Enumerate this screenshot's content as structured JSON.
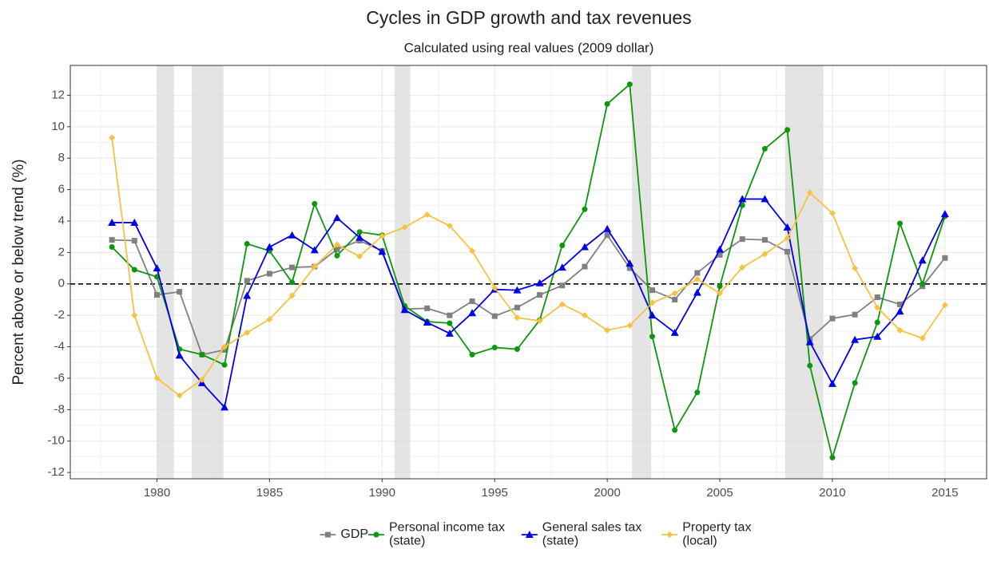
{
  "chart_data": {
    "type": "line",
    "title": "Cycles in GDP growth and tax revenues",
    "subtitle": "Calculated using real values (2009 dollar)",
    "y_label": "Percent above or below trend (%)",
    "x": [
      1978,
      1979,
      1980,
      1981,
      1982,
      1983,
      1984,
      1985,
      1986,
      1987,
      1988,
      1989,
      1990,
      1991,
      1992,
      1993,
      1994,
      1995,
      1996,
      1997,
      1998,
      1999,
      2000,
      2001,
      2002,
      2003,
      2004,
      2005,
      2006,
      2007,
      2008,
      2009,
      2010,
      2011,
      2012,
      2013,
      2014,
      2015
    ],
    "series": [
      {
        "name": "GDP",
        "color": "#808080",
        "marker": "square",
        "values": [
          2.8,
          2.75,
          -0.7,
          -0.5,
          -4.5,
          -4.2,
          0.2,
          0.65,
          1.05,
          1.1,
          2.2,
          2.75,
          2.1,
          -1.6,
          -1.55,
          -2.0,
          -1.1,
          -2.05,
          -1.5,
          -0.7,
          -0.1,
          1.1,
          3.1,
          1.0,
          -0.4,
          -1.0,
          0.7,
          1.85,
          2.85,
          2.8,
          2.05,
          -3.5,
          -2.2,
          -1.95,
          -0.85,
          -1.3,
          -0.15,
          1.65
        ]
      },
      {
        "name": "Personal income tax\n(state)",
        "color": "#0f960f",
        "marker": "circle",
        "values": [
          2.35,
          0.9,
          0.45,
          -4.15,
          -4.5,
          -5.15,
          2.55,
          2.1,
          0.1,
          5.1,
          1.8,
          3.3,
          3.1,
          -1.4,
          -2.4,
          -2.5,
          -4.5,
          -4.05,
          -4.15,
          -2.3,
          2.45,
          4.75,
          11.45,
          12.7,
          -3.35,
          -9.3,
          -6.9,
          -0.15,
          5.0,
          8.6,
          9.8,
          -5.2,
          -11.05,
          -6.3,
          -2.45,
          3.85,
          0.0,
          4.3
        ]
      },
      {
        "name": "General sales tax\n(state)",
        "color": "#0000e6",
        "marker": "triangle",
        "values": [
          3.9,
          3.9,
          1.0,
          -4.55,
          -6.3,
          -7.85,
          -0.75,
          2.35,
          3.1,
          2.15,
          4.2,
          2.95,
          2.05,
          -1.65,
          -2.45,
          -3.15,
          -1.85,
          -0.35,
          -0.4,
          0.05,
          1.05,
          2.35,
          3.5,
          1.3,
          -2.0,
          -3.1,
          -0.55,
          2.2,
          5.4,
          5.4,
          3.6,
          -3.7,
          -6.35,
          -3.55,
          -3.35,
          -1.75,
          1.5,
          4.45
        ]
      },
      {
        "name": "Property tax\n(local)",
        "color": "#f5c242",
        "marker": "diamond",
        "values": [
          9.3,
          -2.0,
          -6.0,
          -7.1,
          -6.1,
          -4.0,
          -3.1,
          -2.25,
          -0.75,
          1.1,
          2.5,
          1.75,
          3.05,
          3.6,
          4.4,
          3.7,
          2.1,
          -0.25,
          -2.15,
          -2.35,
          -1.3,
          -2.0,
          -2.95,
          -2.65,
          -1.2,
          -0.6,
          0.3,
          -0.6,
          1.05,
          1.9,
          2.9,
          5.8,
          4.5,
          1.0,
          -1.5,
          -2.95,
          -3.45,
          -1.35
        ]
      }
    ],
    "recessions": [
      [
        1980.0,
        1980.75
      ],
      [
        1981.55,
        1982.95
      ],
      [
        1990.55,
        1991.25
      ],
      [
        2001.1,
        2001.95
      ],
      [
        2007.9,
        2009.6
      ]
    ],
    "hline": 0,
    "xlim": [
      1976.15,
      2016.85
    ],
    "xticks": [
      1980,
      1985,
      1990,
      1995,
      2000,
      2005,
      2010,
      2015
    ],
    "ylim": [
      -12.4,
      13.9
    ],
    "yticks": [
      -12,
      -10,
      -8,
      -6,
      -4,
      -2,
      0,
      2,
      4,
      6,
      8,
      10,
      12
    ],
    "grid": true,
    "legend": "bottom"
  }
}
